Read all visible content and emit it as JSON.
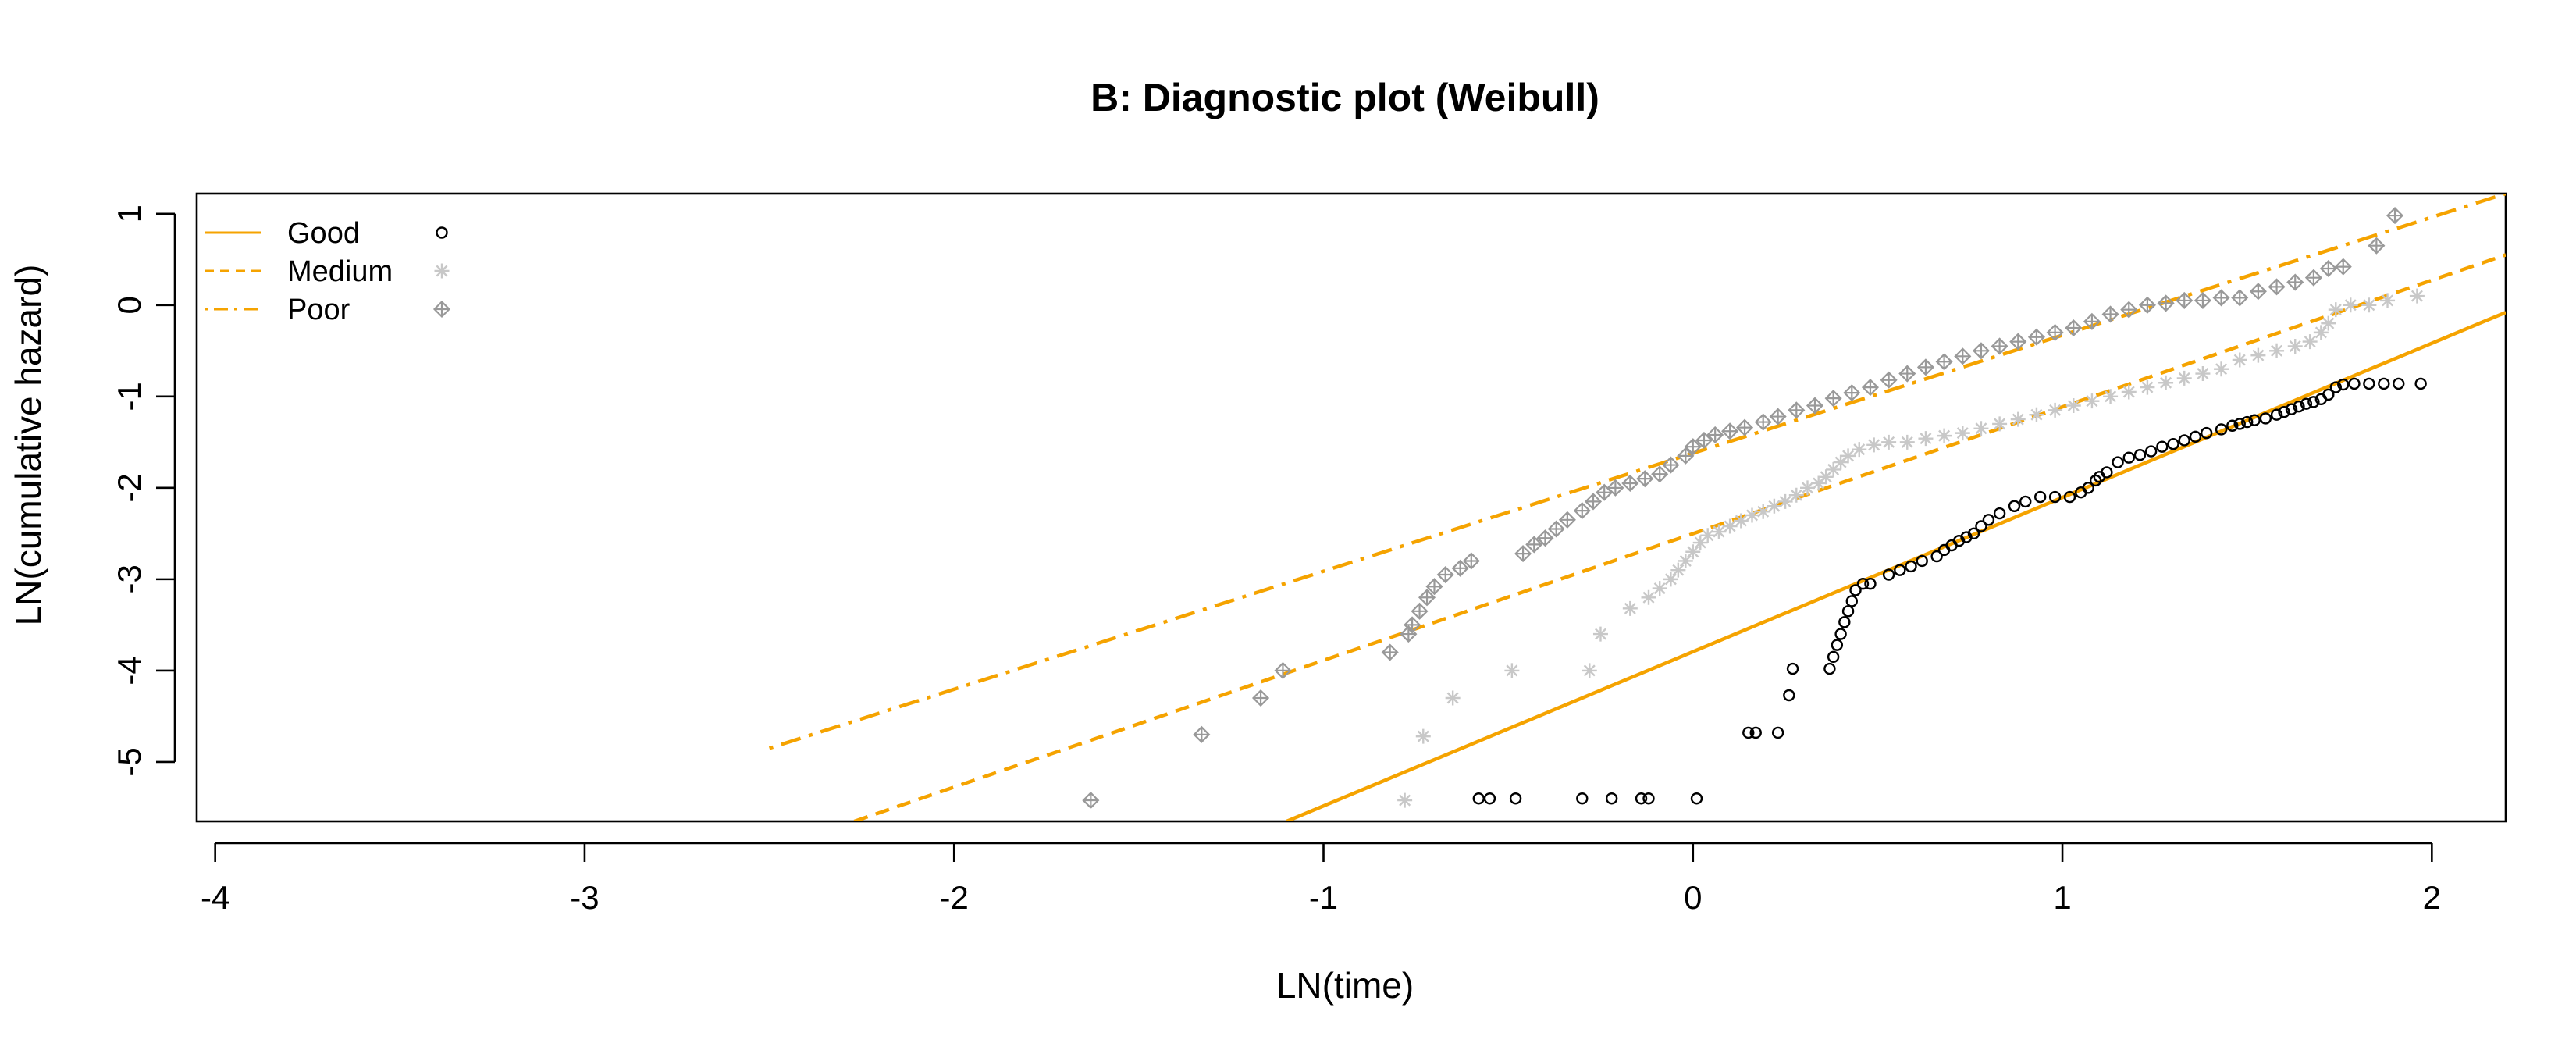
{
  "chart_data": {
    "type": "scatter",
    "title": "B: Diagnostic plot (Weibull)",
    "xlabel": "LN(time)",
    "ylabel": "LN(cumulative hazard)",
    "xlim": [
      -4.05,
      2.2
    ],
    "ylim": [
      -5.65,
      1.22
    ],
    "x_ticks": [
      -4,
      -3,
      -2,
      -1,
      0,
      1,
      2
    ],
    "x_tick_labels": [
      "-4",
      "-3",
      "-2",
      "-1",
      "0",
      "1",
      "2"
    ],
    "y_ticks": [
      -5,
      -4,
      -3,
      -2,
      -1,
      0,
      1
    ],
    "y_tick_labels": [
      "-5",
      "-4",
      "-3",
      "-2",
      "-1",
      "0",
      "1"
    ],
    "legend_position": "top-left",
    "colors": {
      "line": "#f5a300",
      "good": "#000000",
      "medium": "#c8c8c8",
      "poor": "#999999"
    },
    "series": [
      {
        "name": "Good",
        "line_style": "solid",
        "marker": "circle",
        "fit_line": {
          "x": [
            -1.1,
            2.2
          ],
          "y": [
            -5.65,
            -0.08
          ]
        },
        "points": [
          [
            -0.58,
            -5.4
          ],
          [
            -0.55,
            -5.4
          ],
          [
            -0.48,
            -5.4
          ],
          [
            -0.3,
            -5.4
          ],
          [
            -0.22,
            -5.4
          ],
          [
            -0.14,
            -5.4
          ],
          [
            -0.12,
            -5.4
          ],
          [
            0.01,
            -5.4
          ],
          [
            0.15,
            -4.68
          ],
          [
            0.17,
            -4.68
          ],
          [
            0.23,
            -4.68
          ],
          [
            0.26,
            -4.27
          ],
          [
            0.27,
            -3.98
          ],
          [
            0.37,
            -3.98
          ],
          [
            0.38,
            -3.85
          ],
          [
            0.39,
            -3.72
          ],
          [
            0.4,
            -3.6
          ],
          [
            0.41,
            -3.47
          ],
          [
            0.42,
            -3.35
          ],
          [
            0.43,
            -3.24
          ],
          [
            0.44,
            -3.12
          ],
          [
            0.46,
            -3.05
          ],
          [
            0.48,
            -3.05
          ],
          [
            0.53,
            -2.95
          ],
          [
            0.56,
            -2.9
          ],
          [
            0.59,
            -2.86
          ],
          [
            0.62,
            -2.8
          ],
          [
            0.66,
            -2.75
          ],
          [
            0.68,
            -2.68
          ],
          [
            0.7,
            -2.63
          ],
          [
            0.72,
            -2.58
          ],
          [
            0.74,
            -2.54
          ],
          [
            0.76,
            -2.5
          ],
          [
            0.78,
            -2.42
          ],
          [
            0.8,
            -2.35
          ],
          [
            0.83,
            -2.28
          ],
          [
            0.87,
            -2.2
          ],
          [
            0.9,
            -2.15
          ],
          [
            0.94,
            -2.1
          ],
          [
            0.98,
            -2.1
          ],
          [
            1.02,
            -2.1
          ],
          [
            1.05,
            -2.05
          ],
          [
            1.07,
            -2.0
          ],
          [
            1.09,
            -1.92
          ],
          [
            1.1,
            -1.88
          ],
          [
            1.12,
            -1.83
          ],
          [
            1.15,
            -1.72
          ],
          [
            1.18,
            -1.67
          ],
          [
            1.21,
            -1.64
          ],
          [
            1.24,
            -1.6
          ],
          [
            1.27,
            -1.55
          ],
          [
            1.3,
            -1.52
          ],
          [
            1.33,
            -1.48
          ],
          [
            1.36,
            -1.44
          ],
          [
            1.39,
            -1.4
          ],
          [
            1.43,
            -1.36
          ],
          [
            1.46,
            -1.32
          ],
          [
            1.48,
            -1.3
          ],
          [
            1.5,
            -1.28
          ],
          [
            1.52,
            -1.26
          ],
          [
            1.55,
            -1.24
          ],
          [
            1.58,
            -1.2
          ],
          [
            1.6,
            -1.17
          ],
          [
            1.62,
            -1.14
          ],
          [
            1.64,
            -1.11
          ],
          [
            1.66,
            -1.08
          ],
          [
            1.68,
            -1.06
          ],
          [
            1.7,
            -1.03
          ],
          [
            1.72,
            -0.98
          ],
          [
            1.74,
            -0.9
          ],
          [
            1.76,
            -0.87
          ],
          [
            1.79,
            -0.86
          ],
          [
            1.83,
            -0.86
          ],
          [
            1.87,
            -0.86
          ],
          [
            1.91,
            -0.86
          ],
          [
            1.97,
            -0.86
          ]
        ]
      },
      {
        "name": "Medium",
        "line_style": "dashed",
        "marker": "asterisk",
        "fit_line": {
          "x": [
            -2.27,
            2.2
          ],
          "y": [
            -5.65,
            0.55
          ]
        },
        "points": [
          [
            -0.78,
            -5.42
          ],
          [
            -0.73,
            -4.72
          ],
          [
            -0.65,
            -4.3
          ],
          [
            -0.49,
            -4.0
          ],
          [
            -0.28,
            -4.0
          ],
          [
            -0.25,
            -3.6
          ],
          [
            -0.17,
            -3.32
          ],
          [
            -0.12,
            -3.2
          ],
          [
            -0.09,
            -3.1
          ],
          [
            -0.06,
            -3.0
          ],
          [
            -0.04,
            -2.9
          ],
          [
            -0.02,
            -2.8
          ],
          [
            0.0,
            -2.7
          ],
          [
            0.02,
            -2.6
          ],
          [
            0.04,
            -2.52
          ],
          [
            0.07,
            -2.48
          ],
          [
            0.1,
            -2.42
          ],
          [
            0.13,
            -2.36
          ],
          [
            0.16,
            -2.3
          ],
          [
            0.19,
            -2.26
          ],
          [
            0.22,
            -2.2
          ],
          [
            0.25,
            -2.15
          ],
          [
            0.28,
            -2.08
          ],
          [
            0.31,
            -2.0
          ],
          [
            0.34,
            -1.95
          ],
          [
            0.36,
            -1.88
          ],
          [
            0.38,
            -1.8
          ],
          [
            0.4,
            -1.72
          ],
          [
            0.42,
            -1.65
          ],
          [
            0.45,
            -1.58
          ],
          [
            0.49,
            -1.53
          ],
          [
            0.53,
            -1.5
          ],
          [
            0.58,
            -1.5
          ],
          [
            0.63,
            -1.46
          ],
          [
            0.68,
            -1.43
          ],
          [
            0.73,
            -1.4
          ],
          [
            0.78,
            -1.35
          ],
          [
            0.83,
            -1.3
          ],
          [
            0.88,
            -1.25
          ],
          [
            0.93,
            -1.2
          ],
          [
            0.98,
            -1.15
          ],
          [
            1.03,
            -1.1
          ],
          [
            1.08,
            -1.05
          ],
          [
            1.13,
            -1.0
          ],
          [
            1.18,
            -0.95
          ],
          [
            1.23,
            -0.9
          ],
          [
            1.28,
            -0.85
          ],
          [
            1.33,
            -0.8
          ],
          [
            1.38,
            -0.75
          ],
          [
            1.43,
            -0.7
          ],
          [
            1.48,
            -0.6
          ],
          [
            1.53,
            -0.55
          ],
          [
            1.58,
            -0.5
          ],
          [
            1.63,
            -0.45
          ],
          [
            1.67,
            -0.4
          ],
          [
            1.7,
            -0.3
          ],
          [
            1.72,
            -0.2
          ],
          [
            1.74,
            -0.05
          ],
          [
            1.78,
            0.0
          ],
          [
            1.83,
            0.0
          ],
          [
            1.88,
            0.05
          ],
          [
            1.96,
            0.1
          ]
        ]
      },
      {
        "name": "Poor",
        "line_style": "dotdash",
        "marker": "diamond-plus",
        "fit_line": {
          "x": [
            -2.5,
            2.2
          ],
          "y": [
            -4.85,
            1.22
          ]
        },
        "points": [
          [
            -1.63,
            -5.42
          ],
          [
            -1.33,
            -4.7
          ],
          [
            -1.17,
            -4.3
          ],
          [
            -1.11,
            -4.0
          ],
          [
            -0.82,
            -3.8
          ],
          [
            -0.77,
            -3.6
          ],
          [
            -0.76,
            -3.5
          ],
          [
            -0.74,
            -3.35
          ],
          [
            -0.72,
            -3.2
          ],
          [
            -0.7,
            -3.08
          ],
          [
            -0.67,
            -2.95
          ],
          [
            -0.63,
            -2.88
          ],
          [
            -0.6,
            -2.8
          ],
          [
            -0.46,
            -2.72
          ],
          [
            -0.43,
            -2.62
          ],
          [
            -0.4,
            -2.55
          ],
          [
            -0.37,
            -2.45
          ],
          [
            -0.34,
            -2.35
          ],
          [
            -0.3,
            -2.25
          ],
          [
            -0.27,
            -2.15
          ],
          [
            -0.24,
            -2.05
          ],
          [
            -0.21,
            -2.0
          ],
          [
            -0.17,
            -1.95
          ],
          [
            -0.13,
            -1.9
          ],
          [
            -0.09,
            -1.85
          ],
          [
            -0.06,
            -1.75
          ],
          [
            -0.02,
            -1.65
          ],
          [
            0.0,
            -1.55
          ],
          [
            0.03,
            -1.48
          ],
          [
            0.06,
            -1.42
          ],
          [
            0.1,
            -1.38
          ],
          [
            0.14,
            -1.34
          ],
          [
            0.19,
            -1.28
          ],
          [
            0.23,
            -1.22
          ],
          [
            0.28,
            -1.15
          ],
          [
            0.33,
            -1.1
          ],
          [
            0.38,
            -1.02
          ],
          [
            0.43,
            -0.96
          ],
          [
            0.48,
            -0.9
          ],
          [
            0.53,
            -0.82
          ],
          [
            0.58,
            -0.75
          ],
          [
            0.63,
            -0.68
          ],
          [
            0.68,
            -0.62
          ],
          [
            0.73,
            -0.56
          ],
          [
            0.78,
            -0.5
          ],
          [
            0.83,
            -0.45
          ],
          [
            0.88,
            -0.4
          ],
          [
            0.93,
            -0.35
          ],
          [
            0.98,
            -0.3
          ],
          [
            1.03,
            -0.25
          ],
          [
            1.08,
            -0.18
          ],
          [
            1.13,
            -0.1
          ],
          [
            1.18,
            -0.05
          ],
          [
            1.23,
            0.0
          ],
          [
            1.28,
            0.02
          ],
          [
            1.33,
            0.05
          ],
          [
            1.38,
            0.05
          ],
          [
            1.43,
            0.08
          ],
          [
            1.48,
            0.08
          ],
          [
            1.53,
            0.15
          ],
          [
            1.58,
            0.2
          ],
          [
            1.63,
            0.25
          ],
          [
            1.68,
            0.3
          ],
          [
            1.72,
            0.4
          ],
          [
            1.76,
            0.42
          ],
          [
            1.85,
            0.65
          ],
          [
            1.9,
            0.98
          ]
        ]
      }
    ]
  }
}
